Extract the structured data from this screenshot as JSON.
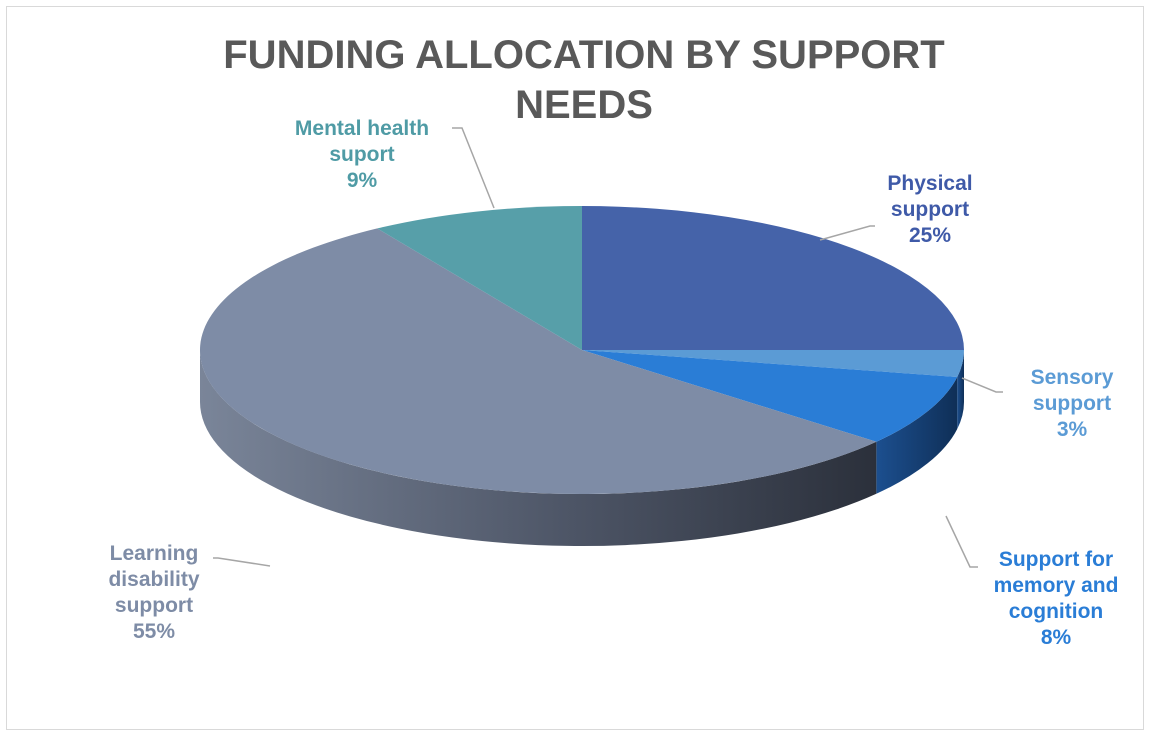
{
  "chart_data": {
    "type": "pie",
    "title_lines": [
      "FUNDING ALLOCATION BY SUPPORT",
      "NEEDS"
    ],
    "slices": [
      {
        "name_lines": [
          "Physical",
          "support"
        ],
        "value": 25,
        "value_label": "25%",
        "color": "#4563a9",
        "label_color": "#3f5aa8"
      },
      {
        "name_lines": [
          "Sensory",
          "support"
        ],
        "value": 3,
        "value_label": "3%",
        "color": "#5b9bd5",
        "label_color": "#5b9bd5"
      },
      {
        "name_lines": [
          "Support for",
          "memory and",
          "cognition"
        ],
        "value": 8,
        "value_label": "8%",
        "color": "#2a7dd6",
        "label_color": "#2a7dd6"
      },
      {
        "name_lines": [
          "Learning",
          "disability",
          "support"
        ],
        "value": 55,
        "value_label": "55%",
        "color": "#7e8ca6",
        "label_color": "#7e8ca6"
      },
      {
        "name_lines": [
          "Mental health",
          "suport"
        ],
        "value": 9,
        "value_label": "9%",
        "color": "#579fa9",
        "label_color": "#4f9ba5"
      }
    ],
    "legend": "none",
    "style": "3d-pie"
  }
}
